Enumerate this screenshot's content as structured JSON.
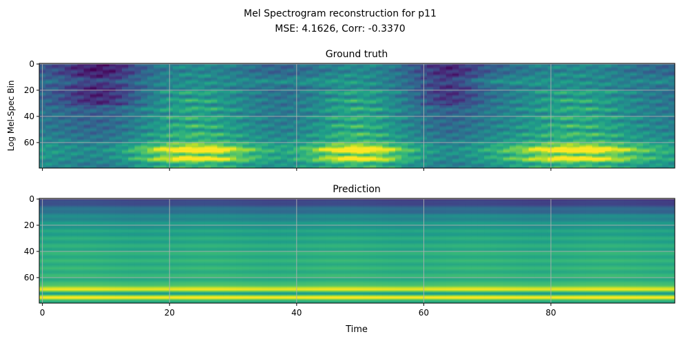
{
  "figure": {
    "title_line1": "Mel Spectrogram reconstruction for p11",
    "title_line2": "MSE: 4.1626, Corr: -0.3370"
  },
  "chart_data": [
    {
      "type": "heatmap",
      "title": "Ground truth",
      "xlabel": "",
      "ylabel": "Log Mel-Spec Bin",
      "xlim": [
        -0.5,
        99.5
      ],
      "ylim": [
        79.5,
        -0.5
      ],
      "y_inverted": true,
      "x_ticks": [
        0,
        20,
        40,
        60,
        80
      ],
      "x_tick_labels_visible": false,
      "y_ticks": [
        0,
        20,
        40,
        60
      ],
      "grid": true,
      "colormap": "viridis",
      "n_time": 100,
      "n_bins": 80,
      "description_of_values": "Speech mel spectrogram; low energy (dark) near bins 0-15 at times 0-15 and ~60-70; strong harmonic bands (yellow) at bins ~62-75 during voiced segments t=16-32, t=43-56, t=75-93"
    },
    {
      "type": "heatmap",
      "title": "Prediction",
      "xlabel": "Time",
      "ylabel": "",
      "xlim": [
        -0.5,
        99.5
      ],
      "ylim": [
        79.5,
        -0.5
      ],
      "y_inverted": true,
      "x_ticks": [
        0,
        20,
        40,
        60,
        80
      ],
      "x_tick_labels_visible": true,
      "y_ticks": [
        0,
        20,
        40,
        60
      ],
      "grid": true,
      "colormap": "viridis",
      "n_time": 100,
      "n_bins": 80,
      "description_of_values": "Nearly time-invariant prediction; dark at bins 0-10, mid green 15-60, bright yellow bands at bins ~67-70 and ~74-76"
    }
  ],
  "colors": {
    "grid": "#b0b0b0",
    "axis": "#000000"
  }
}
